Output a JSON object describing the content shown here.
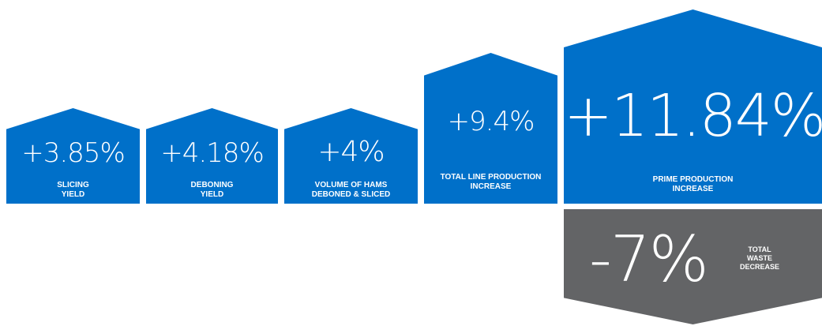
{
  "colors": {
    "blue": "#0070c9",
    "gray": "#636466",
    "text": "#ffffff"
  },
  "stats": [
    {
      "value": "+3.85%",
      "label_lines": [
        "SLICING",
        "YIELD"
      ]
    },
    {
      "value": "+4.18%",
      "label_lines": [
        "DEBONING",
        "YIELD"
      ]
    },
    {
      "value": "+4%",
      "label_lines": [
        "VOLUME OF HAMS",
        "DEBONED & SLICED"
      ]
    },
    {
      "value": "+9.4%",
      "label_lines": [
        "TOTAL LINE PRODUCTION",
        "INCREASE"
      ]
    },
    {
      "value": "+11.84%",
      "label_lines": [
        "PRIME PRODUCTION",
        "INCREASE"
      ]
    }
  ],
  "waste": {
    "value": "-7%",
    "label_lines": [
      "TOTAL",
      "WASTE",
      "DECREASE"
    ]
  }
}
